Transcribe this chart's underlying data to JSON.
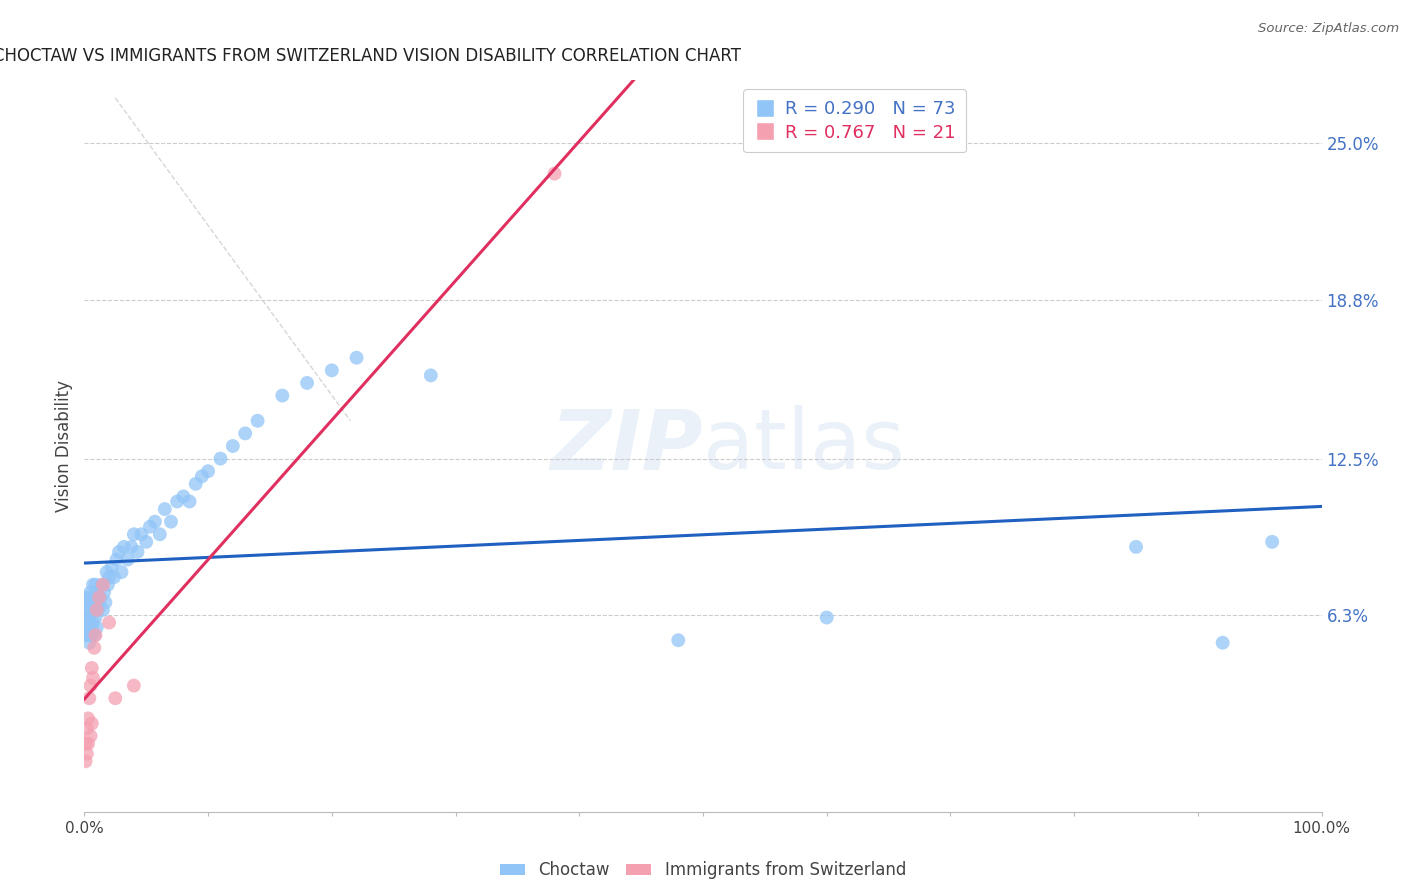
{
  "title": "CHOCTAW VS IMMIGRANTS FROM SWITZERLAND VISION DISABILITY CORRELATION CHART",
  "source": "Source: ZipAtlas.com",
  "ylabel": "Vision Disability",
  "ytick_labels": [
    "6.3%",
    "12.5%",
    "18.8%",
    "25.0%"
  ],
  "ytick_values": [
    0.063,
    0.125,
    0.188,
    0.25
  ],
  "xmin": 0.0,
  "xmax": 1.0,
  "ymin": -0.015,
  "ymax": 0.275,
  "legend_r1": "R = 0.290",
  "legend_n1": "N = 73",
  "legend_r2": "R = 0.767",
  "legend_n2": "N = 21",
  "color_blue": "#92c5f7",
  "color_pink": "#f4a0b0",
  "trend_blue": "#2060c0",
  "trend_pink": "#e03060",
  "background": "#ffffff",
  "choctaw_x": [
    0.001,
    0.001,
    0.001,
    0.002,
    0.002,
    0.002,
    0.002,
    0.003,
    0.003,
    0.003,
    0.004,
    0.004,
    0.004,
    0.005,
    0.005,
    0.005,
    0.006,
    0.006,
    0.007,
    0.007,
    0.008,
    0.008,
    0.009,
    0.009,
    0.01,
    0.01,
    0.011,
    0.012,
    0.013,
    0.014,
    0.015,
    0.016,
    0.017,
    0.018,
    0.019,
    0.02,
    0.022,
    0.024,
    0.026,
    0.028,
    0.03,
    0.032,
    0.035,
    0.038,
    0.04,
    0.043,
    0.046,
    0.05,
    0.053,
    0.057,
    0.061,
    0.065,
    0.07,
    0.075,
    0.08,
    0.085,
    0.09,
    0.095,
    0.1,
    0.11,
    0.12,
    0.13,
    0.14,
    0.16,
    0.18,
    0.2,
    0.22,
    0.28,
    0.48,
    0.6,
    0.85,
    0.92,
    0.96
  ],
  "choctaw_y": [
    0.06,
    0.055,
    0.068,
    0.058,
    0.062,
    0.065,
    0.07,
    0.055,
    0.06,
    0.068,
    0.052,
    0.062,
    0.07,
    0.055,
    0.065,
    0.072,
    0.058,
    0.068,
    0.06,
    0.075,
    0.055,
    0.068,
    0.062,
    0.075,
    0.058,
    0.072,
    0.065,
    0.068,
    0.07,
    0.075,
    0.065,
    0.072,
    0.068,
    0.08,
    0.075,
    0.078,
    0.082,
    0.078,
    0.085,
    0.088,
    0.08,
    0.09,
    0.085,
    0.09,
    0.095,
    0.088,
    0.095,
    0.092,
    0.098,
    0.1,
    0.095,
    0.105,
    0.1,
    0.108,
    0.11,
    0.108,
    0.115,
    0.118,
    0.12,
    0.125,
    0.13,
    0.135,
    0.14,
    0.15,
    0.155,
    0.16,
    0.165,
    0.158,
    0.053,
    0.062,
    0.09,
    0.052,
    0.092
  ],
  "swiss_x": [
    0.001,
    0.001,
    0.002,
    0.002,
    0.003,
    0.003,
    0.004,
    0.005,
    0.005,
    0.006,
    0.006,
    0.007,
    0.008,
    0.009,
    0.01,
    0.012,
    0.015,
    0.02,
    0.025,
    0.04,
    0.38
  ],
  "swiss_y": [
    0.005,
    0.012,
    0.008,
    0.018,
    0.012,
    0.022,
    0.03,
    0.015,
    0.035,
    0.02,
    0.042,
    0.038,
    0.05,
    0.055,
    0.065,
    0.07,
    0.075,
    0.06,
    0.03,
    0.035,
    0.238
  ]
}
